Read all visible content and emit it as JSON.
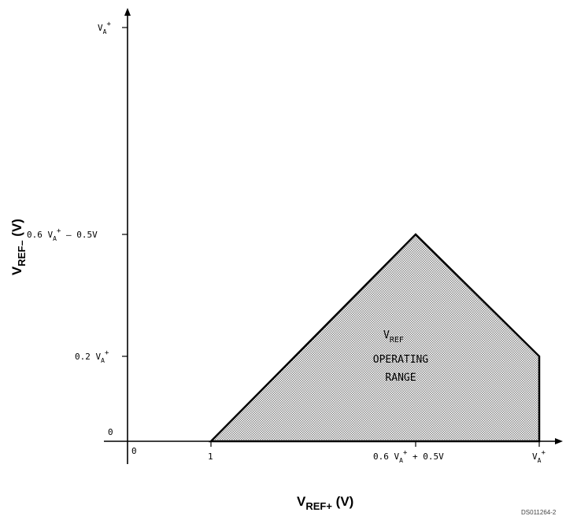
{
  "diagram": {
    "y_axis": {
      "title_main": "V",
      "title_sub": "REF–",
      "title_unit": " (V)",
      "tick_vaplus_main": "V",
      "tick_vaplus_sub": "A",
      "tick_vaplus_sup": "+",
      "tick_mid_prefix": "0.6 V",
      "tick_mid_sub": "A",
      "tick_mid_sup": "+",
      "tick_mid_suffix": " – 0.5V",
      "tick_low_prefix": "0.2 V",
      "tick_low_sub": "A",
      "tick_low_sup": "+",
      "tick_zero": "0"
    },
    "x_axis": {
      "title_main": "V",
      "title_sub": "REF+",
      "title_unit": " (V)",
      "tick_zero": "0",
      "tick_one": "1",
      "tick_mid_prefix": "0.6 V",
      "tick_mid_sub": "A",
      "tick_mid_sup": "+",
      "tick_mid_suffix": " + 0.5V",
      "tick_vaplus_main": "V",
      "tick_vaplus_sub": "A",
      "tick_vaplus_sup": "+"
    },
    "region": {
      "line1_main": "V",
      "line1_sub": "REF",
      "line2": "OPERATING",
      "line3": "RANGE"
    },
    "footer_code": "DS011264-2"
  },
  "colors": {
    "axis": "#000000",
    "region_fill": "#c8c8c8",
    "region_stroke": "#000000"
  }
}
